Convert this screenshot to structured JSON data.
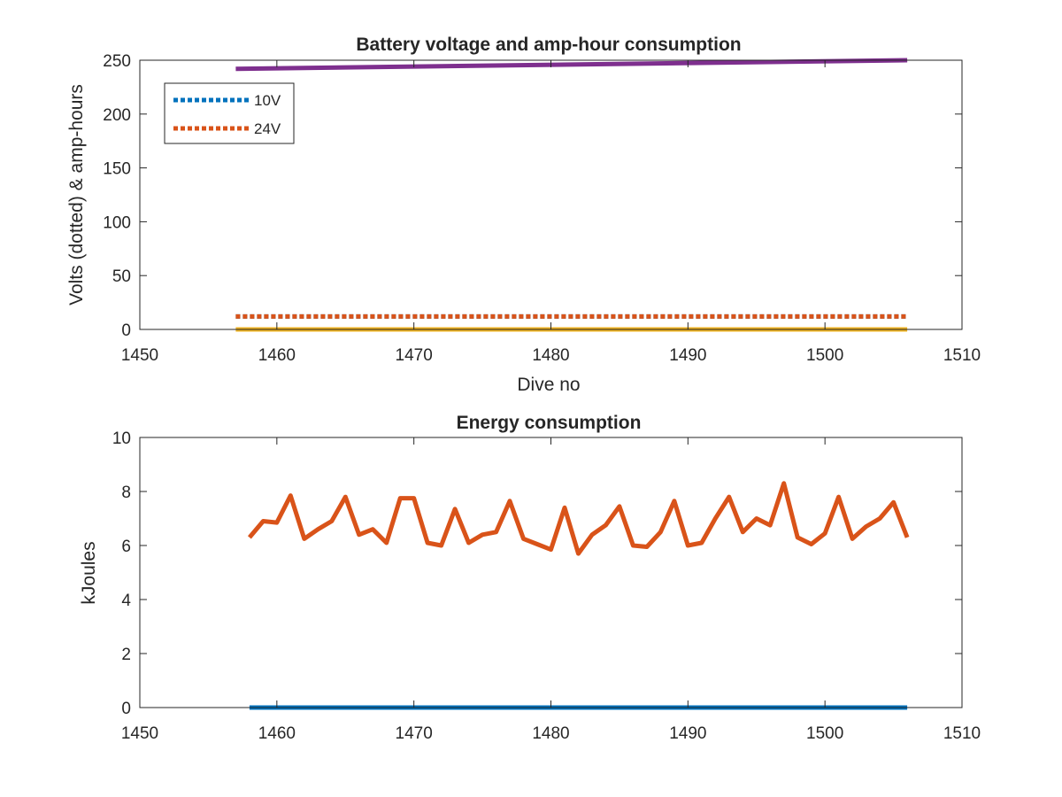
{
  "chart_data": [
    {
      "type": "line",
      "title": "Battery voltage and amp-hour consumption",
      "xlabel": "Dive no",
      "ylabel": "Volts (dotted) & amp-hours",
      "xlim": [
        1450,
        1510
      ],
      "ylim": [
        0,
        250
      ],
      "xticks": [
        1450,
        1460,
        1470,
        1480,
        1490,
        1500,
        1510
      ],
      "yticks": [
        0,
        50,
        100,
        150,
        200,
        250
      ],
      "legend": {
        "placement": "top-left",
        "entries": [
          "10V",
          "24V"
        ]
      },
      "series": [
        {
          "name": "10V",
          "style": "dotted",
          "color": "#0072BD",
          "x": [
            1457,
            1506
          ],
          "y": [
            12,
            12
          ]
        },
        {
          "name": "24V",
          "style": "dotted",
          "color": "#D95319",
          "x": [
            1457,
            1506
          ],
          "y": [
            12,
            12
          ]
        },
        {
          "style": "solid",
          "color": "#EDB120",
          "x": [
            1457,
            1506
          ],
          "y": [
            0,
            0
          ]
        },
        {
          "style": "solid",
          "color": "#7E2F8E",
          "x": [
            1457,
            1506
          ],
          "y": [
            242,
            250
          ]
        }
      ]
    },
    {
      "type": "line",
      "title": "Energy consumption",
      "xlabel": "",
      "ylabel": "kJoules",
      "xlim": [
        1450,
        1510
      ],
      "ylim": [
        0,
        10
      ],
      "xticks": [
        1450,
        1460,
        1470,
        1480,
        1490,
        1500,
        1510
      ],
      "yticks": [
        0,
        2,
        4,
        6,
        8,
        10
      ],
      "series": [
        {
          "style": "solid",
          "color": "#0072BD",
          "x": [
            1458,
            1506
          ],
          "y": [
            0,
            0
          ]
        },
        {
          "style": "solid",
          "color": "#D95319",
          "x": [
            1458,
            1459,
            1460,
            1461,
            1462,
            1463,
            1464,
            1465,
            1466,
            1467,
            1468,
            1469,
            1470,
            1471,
            1472,
            1473,
            1474,
            1475,
            1476,
            1477,
            1478,
            1479,
            1480,
            1481,
            1482,
            1483,
            1484,
            1485,
            1486,
            1487,
            1488,
            1489,
            1490,
            1491,
            1492,
            1493,
            1494,
            1495,
            1496,
            1497,
            1498,
            1499,
            1500,
            1501,
            1502,
            1503,
            1504,
            1505,
            1506
          ],
          "y": [
            6.3,
            6.9,
            6.85,
            7.85,
            6.25,
            6.6,
            6.9,
            7.8,
            6.4,
            6.6,
            6.1,
            7.75,
            7.75,
            6.1,
            6.0,
            7.35,
            6.1,
            6.4,
            6.5,
            7.65,
            6.25,
            6.05,
            5.85,
            7.4,
            5.7,
            6.4,
            6.75,
            7.45,
            6.0,
            5.95,
            6.5,
            7.65,
            6.0,
            6.1,
            7.0,
            7.8,
            6.5,
            7.0,
            6.75,
            8.3,
            6.3,
            6.05,
            6.45,
            7.8,
            6.25,
            6.7,
            7.0,
            7.6,
            6.3
          ]
        }
      ]
    }
  ]
}
